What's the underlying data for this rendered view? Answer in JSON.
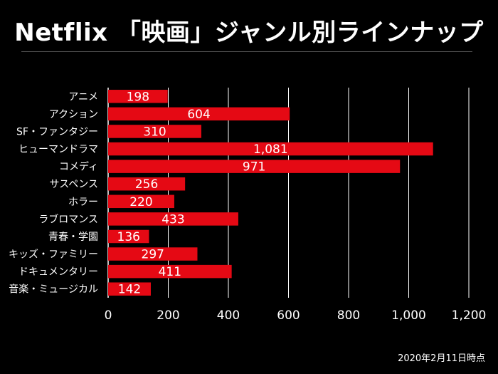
{
  "title": "Netflix 「映画」ジャンル別ラインナップ",
  "footnote": "2020年2月11日時点",
  "colors": {
    "bar": "#e50914",
    "grid": "#ffffff",
    "background": "#000000",
    "text": "#ffffff"
  },
  "chart_data": {
    "type": "bar",
    "orientation": "horizontal",
    "categories": [
      "アニメ",
      "アクション",
      "SF・ファンタジー",
      "ヒューマンドラマ",
      "コメディ",
      "サスペンス",
      "ホラー",
      "ラブロマンス",
      "青春・学園",
      "キッズ・ファミリー",
      "ドキュメンタリー",
      "音楽・ミュージカル"
    ],
    "values": [
      198,
      604,
      310,
      1081,
      971,
      256,
      220,
      433,
      136,
      297,
      411,
      142
    ],
    "value_labels": [
      "198",
      "604",
      "310",
      "1,081",
      "971",
      "256",
      "220",
      "433",
      "136",
      "297",
      "411",
      "142"
    ],
    "xticks": [
      0,
      200,
      400,
      600,
      800,
      1000,
      1200
    ],
    "xtick_labels": [
      "0",
      "200",
      "400",
      "600",
      "800",
      "1,000",
      "1,200"
    ],
    "xlim": [
      0,
      1200
    ],
    "grid": true
  }
}
